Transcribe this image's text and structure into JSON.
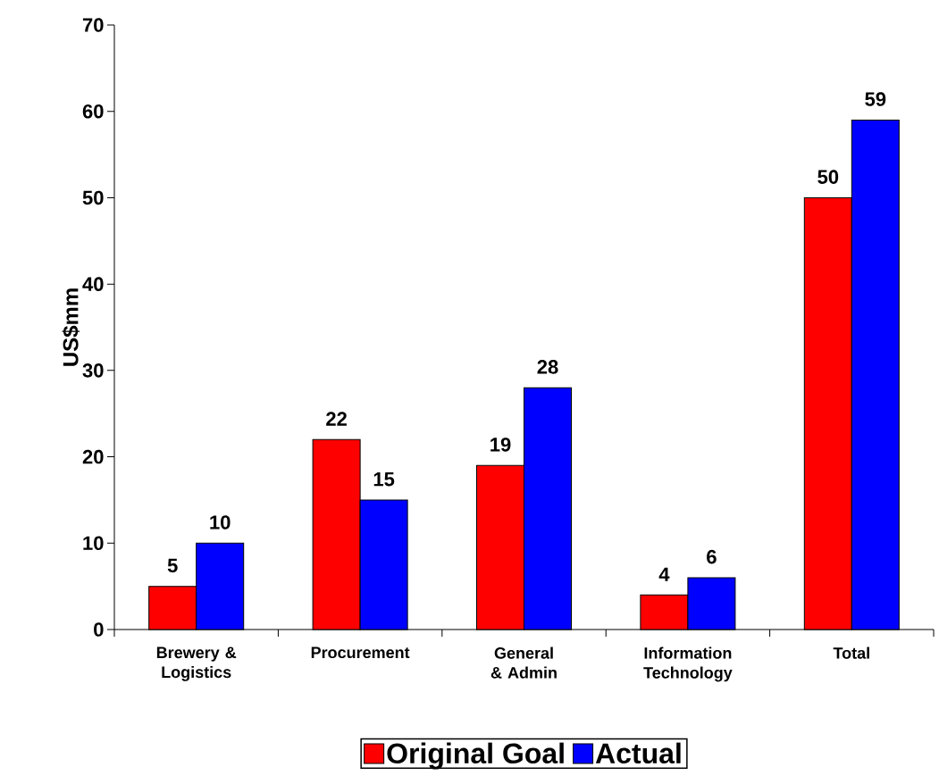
{
  "chart_data": {
    "type": "bar",
    "ylabel": "US$mm",
    "categories": [
      "Brewery & Logistics",
      "Procurement",
      "General & Admin",
      "Information Technology",
      "Total"
    ],
    "series": [
      {
        "name": "Original Goal",
        "color": "#ff0000",
        "values": [
          5,
          22,
          19,
          4,
          50
        ]
      },
      {
        "name": "Actual",
        "color": "#0000ff",
        "values": [
          10,
          15,
          28,
          6,
          59
        ]
      }
    ],
    "ylim": [
      0,
      70
    ],
    "yticks": [
      0,
      10,
      20,
      30,
      40,
      50,
      60,
      70
    ],
    "data_labels": true,
    "legend": "bottom"
  }
}
